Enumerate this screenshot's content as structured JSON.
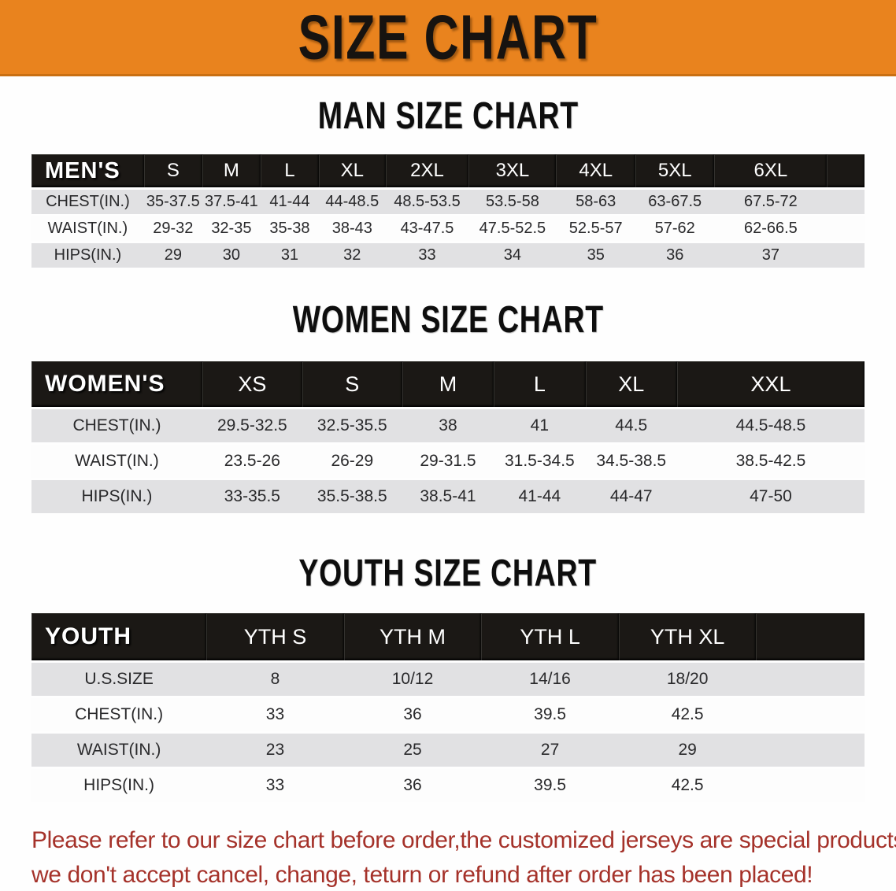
{
  "banner": {
    "title": "SIZE CHART"
  },
  "colors": {
    "banner_bg": "#e9831e",
    "table_header_bg": "#1b1815",
    "row_shade": "#e1e1e3",
    "notice_text": "#a5322a"
  },
  "sections": [
    {
      "id": "men",
      "title": "MAN SIZE CHART",
      "table": {
        "header": [
          "MEN'S",
          "S",
          "M",
          "L",
          "XL",
          "2XL",
          "3XL",
          "4XL",
          "5XL",
          "6XL"
        ],
        "rows": [
          [
            "CHEST(IN.)",
            "35-37.5",
            "37.5-41",
            "41-44",
            "44-48.5",
            "48.5-53.5",
            "53.5-58",
            "58-63",
            "63-67.5",
            "67.5-72"
          ],
          [
            "WAIST(IN.)",
            "29-32",
            "32-35",
            "35-38",
            "38-43",
            "43-47.5",
            "47.5-52.5",
            "52.5-57",
            "57-62",
            "62-66.5"
          ],
          [
            "HIPS(IN.)",
            "29",
            "30",
            "31",
            "32",
            "33",
            "34",
            "35",
            "36",
            "37"
          ]
        ]
      }
    },
    {
      "id": "women",
      "title": "WOMEN SIZE CHART",
      "table": {
        "header": [
          "WOMEN'S",
          "XS",
          "S",
          "M",
          "L",
          "XL",
          "XXL"
        ],
        "rows": [
          [
            "CHEST(IN.)",
            "29.5-32.5",
            "32.5-35.5",
            "38",
            "41",
            "44.5",
            "44.5-48.5"
          ],
          [
            "WAIST(IN.)",
            "23.5-26",
            "26-29",
            "29-31.5",
            "31.5-34.5",
            "34.5-38.5",
            "38.5-42.5"
          ],
          [
            "HIPS(IN.)",
            "33-35.5",
            "35.5-38.5",
            "38.5-41",
            "41-44",
            "44-47",
            "47-50"
          ]
        ]
      }
    },
    {
      "id": "youth",
      "title": "YOUTH SIZE CHART",
      "table": {
        "header": [
          "YOUTH",
          "YTH S",
          "YTH M",
          "YTH L",
          "YTH XL"
        ],
        "rows": [
          [
            "U.S.SIZE",
            "8",
            "10/12",
            "14/16",
            "18/20"
          ],
          [
            "CHEST(IN.)",
            "33",
            "36",
            "39.5",
            "42.5"
          ],
          [
            "WAIST(IN.)",
            "23",
            "25",
            "27",
            "29"
          ],
          [
            "HIPS(IN.)",
            "33",
            "36",
            "39.5",
            "42.5"
          ]
        ]
      }
    }
  ],
  "footer": {
    "line1": "Please refer to our size chart before order,the customized jerseys are special products,",
    "line2": "we don't accept cancel, change, teturn or refund after order has been placed!"
  }
}
